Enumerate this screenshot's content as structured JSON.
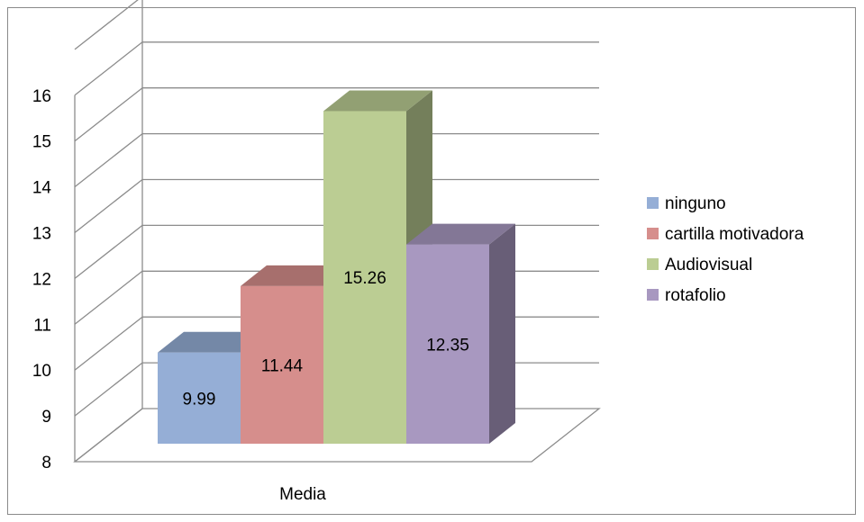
{
  "chart_data": {
    "type": "bar",
    "style": "3d-clustered-column",
    "categories": [
      "Media"
    ],
    "series": [
      {
        "name": "ninguno",
        "values": [
          9.99
        ],
        "color": "#95AED6"
      },
      {
        "name": "cartilla motivadora",
        "values": [
          11.44
        ],
        "color": "#D68E8C"
      },
      {
        "name": "Audiovisual",
        "values": [
          15.26
        ],
        "color": "#BBCD93"
      },
      {
        "name": "rotafolio",
        "values": [
          12.35
        ],
        "color": "#A898C0"
      }
    ],
    "data_labels": [
      "9.99",
      "11.44",
      "15.26",
      "12.35"
    ],
    "y_ticks": [
      8,
      9,
      10,
      11,
      12,
      13,
      14,
      15,
      16
    ],
    "ylim": [
      8,
      16
    ],
    "grid": true,
    "legend_position": "right",
    "title": "",
    "xlabel": "",
    "ylabel": ""
  }
}
